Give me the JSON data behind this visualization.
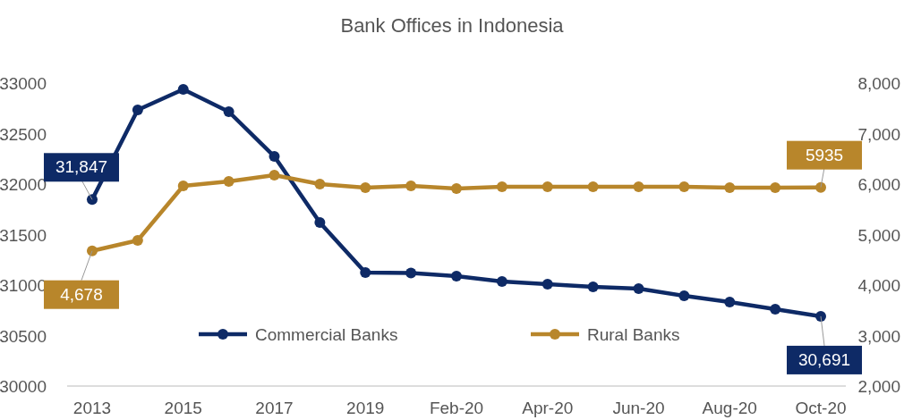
{
  "chart_data": {
    "type": "line",
    "title": "Bank Offices in Indonesia",
    "categories": [
      "2013",
      null,
      "2015",
      null,
      "2017",
      null,
      "2019",
      null,
      "Feb-20",
      null,
      "Apr-20",
      null,
      "Jun-20",
      null,
      "Aug-20",
      null,
      "Oct-20"
    ],
    "series": [
      {
        "name": "Commercial Banks",
        "color": "#0e2a66",
        "values": [
          31847,
          32735,
          32938,
          32717,
          32274,
          31619,
          31124,
          31120,
          31088,
          31035,
          31009,
          30982,
          30965,
          30894,
          30832,
          30761,
          30691
        ],
        "value_labels": [
          "31,847",
          null,
          null,
          null,
          null,
          null,
          null,
          null,
          null,
          null,
          null,
          null,
          null,
          null,
          null,
          null,
          "30,691"
        ]
      },
      {
        "name": "Rural Banks",
        "color": "#b8862b",
        "axis": "y2",
        "values": [
          4678,
          4885,
          5965,
          6053,
          6177,
          6000,
          5930,
          5965,
          5912,
          5947,
          5947,
          5947,
          5947,
          5947,
          5930,
          5930,
          5935
        ],
        "value_labels": [
          "4,678",
          null,
          null,
          null,
          null,
          null,
          null,
          null,
          null,
          null,
          null,
          null,
          null,
          null,
          null,
          null,
          "5935"
        ]
      }
    ],
    "ylim": [
      30000,
      33000
    ],
    "yticks": [
      30000,
      30500,
      31000,
      31500,
      32000,
      32500,
      33000
    ],
    "y2lim": [
      2000,
      8000
    ],
    "y2ticks": [
      {
        "value": 2000,
        "label": "2,000"
      },
      {
        "value": 3000,
        "label": "3,000"
      },
      {
        "value": 4000,
        "label": "4,000"
      },
      {
        "value": 5000,
        "label": "5,000"
      },
      {
        "value": 6000,
        "label": "6,000"
      },
      {
        "value": 7000,
        "label": "7,000"
      },
      {
        "value": 8000,
        "label": "8,000"
      }
    ],
    "marker": "circle",
    "line_style": "solid",
    "legend": "bottom",
    "grid": false
  }
}
